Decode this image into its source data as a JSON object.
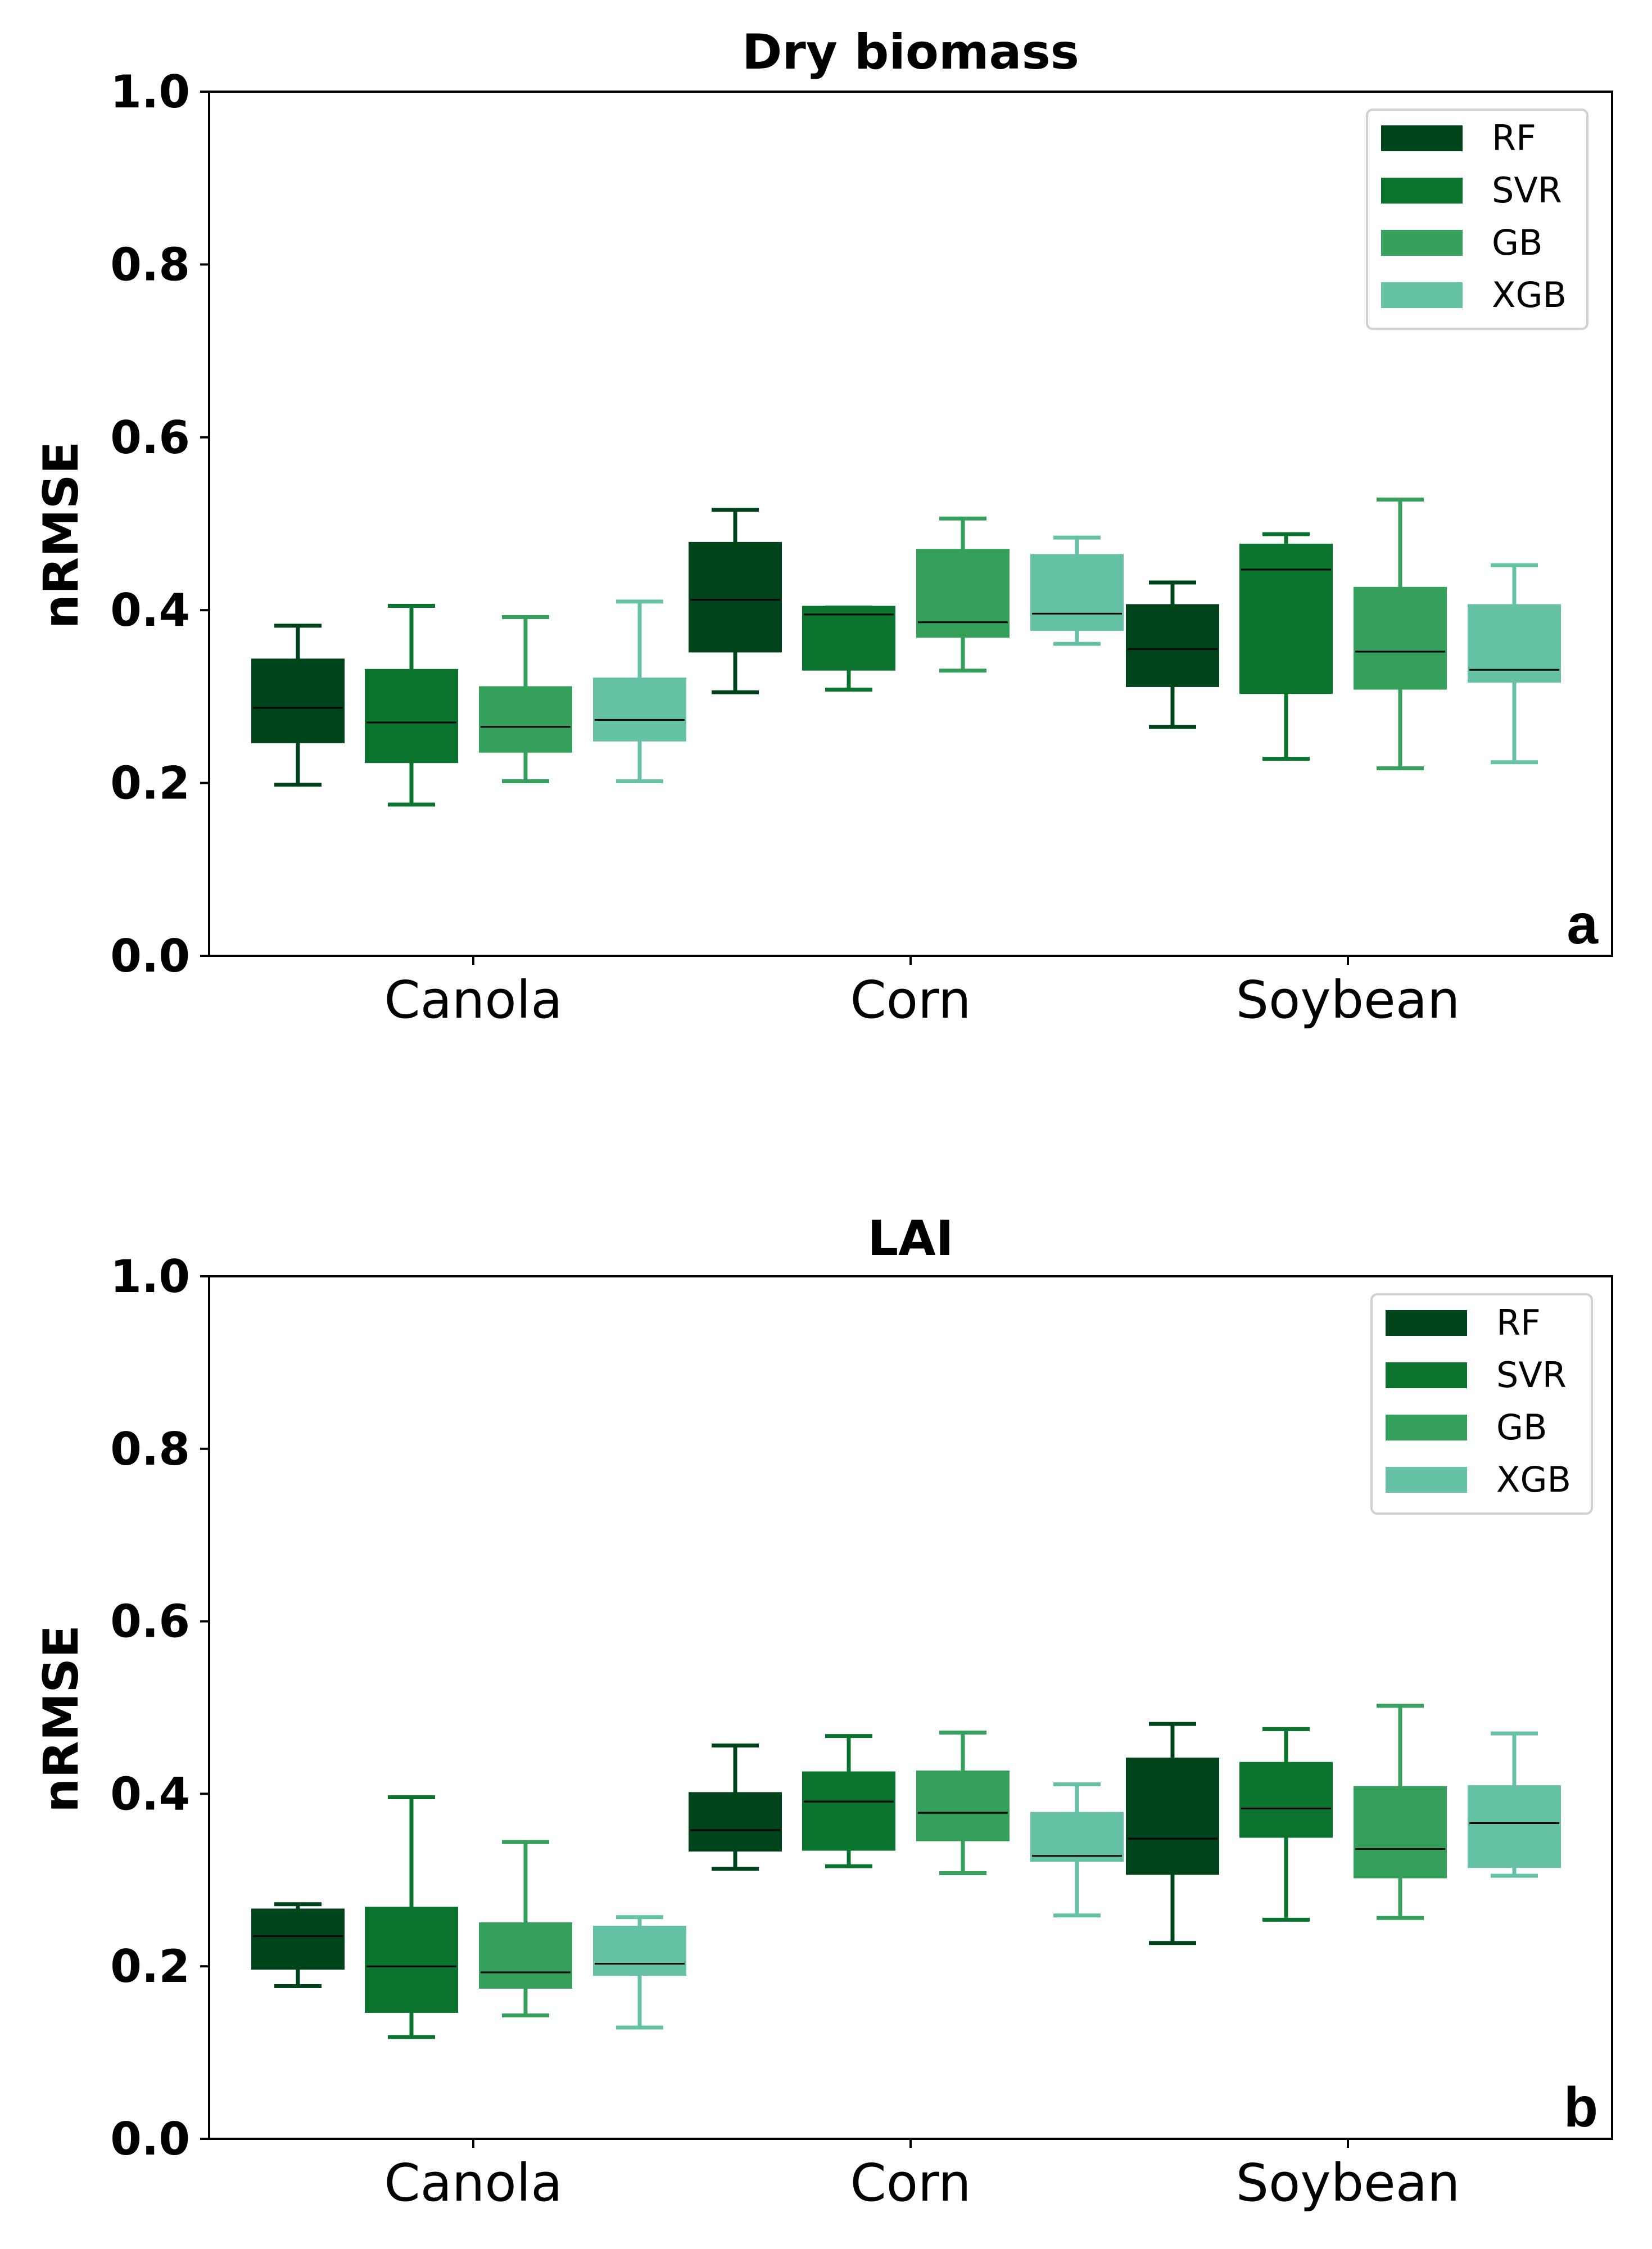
{
  "colors": {
    "RF": "#00441b",
    "SVR": "#0a742f",
    "GB": "#35a05c",
    "XGB": "#66c2a4"
  },
  "chart_data": [
    {
      "type": "box",
      "panel_label": "a",
      "title": "Dry biomass",
      "xlabel": "",
      "ylabel": "nRMSE",
      "ylim": [
        0.0,
        1.0
      ],
      "yticks": [
        "0.0",
        "0.2",
        "0.4",
        "0.6",
        "0.8",
        "1.0"
      ],
      "categories": [
        "Canola",
        "Corn",
        "Soybean"
      ],
      "legend": {
        "entries": [
          "RF",
          "SVR",
          "GB",
          "XGB"
        ],
        "position": "upper right"
      },
      "series": [
        {
          "name": "RF",
          "boxes": [
            {
              "min": 0.198,
              "q1": 0.248,
              "median": 0.287,
              "q3": 0.342,
              "max": 0.382
            },
            {
              "min": 0.305,
              "q1": 0.353,
              "median": 0.412,
              "q3": 0.477,
              "max": 0.516
            },
            {
              "min": 0.265,
              "q1": 0.313,
              "median": 0.355,
              "q3": 0.405,
              "max": 0.432
            }
          ]
        },
        {
          "name": "SVR",
          "boxes": [
            {
              "min": 0.175,
              "q1": 0.225,
              "median": 0.27,
              "q3": 0.33,
              "max": 0.405
            },
            {
              "min": 0.308,
              "q1": 0.332,
              "median": 0.395,
              "q3": 0.403,
              "max": 0.403
            },
            {
              "min": 0.228,
              "q1": 0.305,
              "median": 0.447,
              "q3": 0.475,
              "max": 0.488
            }
          ]
        },
        {
          "name": "GB",
          "boxes": [
            {
              "min": 0.202,
              "q1": 0.237,
              "median": 0.265,
              "q3": 0.31,
              "max": 0.392
            },
            {
              "min": 0.33,
              "q1": 0.37,
              "median": 0.386,
              "q3": 0.469,
              "max": 0.506
            },
            {
              "min": 0.217,
              "q1": 0.31,
              "median": 0.352,
              "q3": 0.425,
              "max": 0.528
            }
          ]
        },
        {
          "name": "XGB",
          "boxes": [
            {
              "min": 0.202,
              "q1": 0.25,
              "median": 0.273,
              "q3": 0.32,
              "max": 0.41
            },
            {
              "min": 0.361,
              "q1": 0.378,
              "median": 0.396,
              "q3": 0.463,
              "max": 0.484
            },
            {
              "min": 0.224,
              "q1": 0.318,
              "median": 0.331,
              "q3": 0.405,
              "max": 0.452
            }
          ]
        }
      ]
    },
    {
      "type": "box",
      "panel_label": "b",
      "title": "LAI",
      "xlabel": "",
      "ylabel": "nRMSE",
      "ylim": [
        0.0,
        1.0
      ],
      "yticks": [
        "0.0",
        "0.2",
        "0.4",
        "0.6",
        "0.8",
        "1.0"
      ],
      "categories": [
        "Canola",
        "Corn",
        "Soybean"
      ],
      "legend": {
        "entries": [
          "RF",
          "SVR",
          "GB",
          "XGB"
        ],
        "position": "upper right"
      },
      "series": [
        {
          "name": "RF",
          "boxes": [
            {
              "min": 0.177,
              "q1": 0.198,
              "median": 0.235,
              "q3": 0.265,
              "max": 0.272
            },
            {
              "min": 0.313,
              "q1": 0.335,
              "median": 0.358,
              "q3": 0.4,
              "max": 0.456
            },
            {
              "min": 0.227,
              "q1": 0.308,
              "median": 0.348,
              "q3": 0.44,
              "max": 0.481
            }
          ]
        },
        {
          "name": "SVR",
          "boxes": [
            {
              "min": 0.118,
              "q1": 0.148,
              "median": 0.2,
              "q3": 0.267,
              "max": 0.396
            },
            {
              "min": 0.316,
              "q1": 0.336,
              "median": 0.391,
              "q3": 0.424,
              "max": 0.467
            },
            {
              "min": 0.254,
              "q1": 0.351,
              "median": 0.383,
              "q3": 0.435,
              "max": 0.475
            }
          ]
        },
        {
          "name": "GB",
          "boxes": [
            {
              "min": 0.143,
              "q1": 0.176,
              "median": 0.193,
              "q3": 0.249,
              "max": 0.344
            },
            {
              "min": 0.308,
              "q1": 0.347,
              "median": 0.378,
              "q3": 0.425,
              "max": 0.471
            },
            {
              "min": 0.256,
              "q1": 0.304,
              "median": 0.336,
              "q3": 0.407,
              "max": 0.502
            }
          ]
        },
        {
          "name": "XGB",
          "boxes": [
            {
              "min": 0.129,
              "q1": 0.191,
              "median": 0.203,
              "q3": 0.245,
              "max": 0.257
            },
            {
              "min": 0.259,
              "q1": 0.323,
              "median": 0.328,
              "q3": 0.377,
              "max": 0.411
            },
            {
              "min": 0.305,
              "q1": 0.316,
              "median": 0.366,
              "q3": 0.408,
              "max": 0.47
            }
          ]
        }
      ]
    }
  ]
}
